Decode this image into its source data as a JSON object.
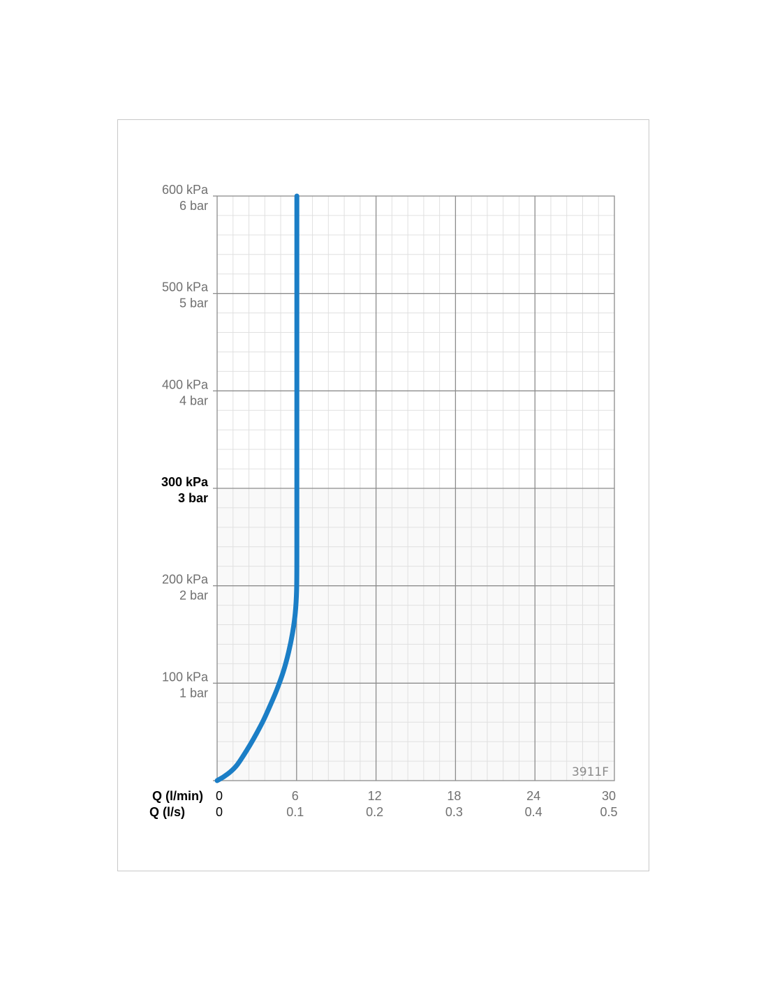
{
  "chart_data": {
    "type": "line",
    "code": "3911F",
    "x_axis_titles": [
      "Q (l/min)",
      "Q (l/s)"
    ],
    "x_ticks": [
      {
        "primary": "0",
        "secondary": "0"
      },
      {
        "primary": "6",
        "secondary": "0.1"
      },
      {
        "primary": "12",
        "secondary": "0.2"
      },
      {
        "primary": "18",
        "secondary": "0.3"
      },
      {
        "primary": "24",
        "secondary": "0.4"
      },
      {
        "primary": "30",
        "secondary": "0.5"
      }
    ],
    "x_tick_values": [
      0,
      6,
      12,
      18,
      24,
      30
    ],
    "y_ticks": [
      {
        "value": 100,
        "kpa": "100 kPa",
        "bar": "1 bar",
        "bold": false
      },
      {
        "value": 200,
        "kpa": "200 kPa",
        "bar": "2 bar",
        "bold": false
      },
      {
        "value": 300,
        "kpa": "300 kPa",
        "bar": "3 bar",
        "bold": true
      },
      {
        "value": 400,
        "kpa": "400 kPa",
        "bar": "4 bar",
        "bold": false
      },
      {
        "value": 500,
        "kpa": "500 kPa",
        "bar": "5 bar",
        "bold": false
      },
      {
        "value": 600,
        "kpa": "600 kPa",
        "bar": "6 bar",
        "bold": false
      }
    ],
    "xlim": [
      0,
      30
    ],
    "ylim": [
      0,
      600
    ],
    "grid": true,
    "series": [
      {
        "color": "#1b7ec6",
        "points": [
          [
            0,
            0
          ],
          [
            0.5,
            4
          ],
          [
            1.0,
            9
          ],
          [
            1.5,
            16
          ],
          [
            2.0,
            26
          ],
          [
            2.5,
            37
          ],
          [
            3.0,
            49
          ],
          [
            3.5,
            62
          ],
          [
            4.0,
            77
          ],
          [
            4.5,
            93
          ],
          [
            5.0,
            112
          ],
          [
            5.4,
            132
          ],
          [
            5.7,
            152
          ],
          [
            5.9,
            172
          ],
          [
            6.0,
            195
          ],
          [
            6.02,
            230
          ],
          [
            6.02,
            300
          ],
          [
            6.02,
            400
          ],
          [
            6.02,
            500
          ],
          [
            6.02,
            600
          ]
        ]
      }
    ]
  }
}
